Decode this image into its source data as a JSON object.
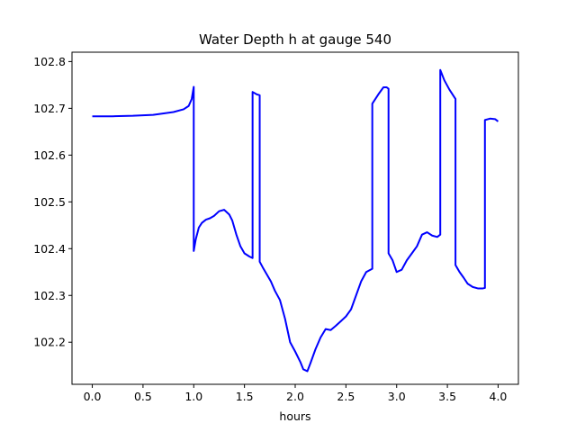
{
  "chart_data": {
    "type": "line",
    "title": "Water Depth h at gauge 540",
    "xlabel": "hours",
    "ylabel": "",
    "xlim": [
      -0.2,
      4.2
    ],
    "ylim": [
      102.11,
      102.82
    ],
    "xticks": [
      0.0,
      0.5,
      1.0,
      1.5,
      2.0,
      2.5,
      3.0,
      3.5,
      4.0
    ],
    "xtick_labels": [
      "0.0",
      "0.5",
      "1.0",
      "1.5",
      "2.0",
      "2.5",
      "3.0",
      "3.5",
      "4.0"
    ],
    "yticks": [
      102.2,
      102.3,
      102.4,
      102.5,
      102.6,
      102.7,
      102.8
    ],
    "ytick_labels": [
      "102.2",
      "102.3",
      "102.4",
      "102.5",
      "102.6",
      "102.7",
      "102.8"
    ],
    "grid": false,
    "series": [
      {
        "color": "#0000ff",
        "x": [
          0.0,
          0.2,
          0.4,
          0.6,
          0.8,
          0.9,
          0.95,
          0.98,
          1.0,
          1.0,
          1.02,
          1.05,
          1.08,
          1.12,
          1.16,
          1.2,
          1.25,
          1.3,
          1.35,
          1.38,
          1.42,
          1.46,
          1.5,
          1.55,
          1.58,
          1.58,
          1.62,
          1.65,
          1.65,
          1.68,
          1.72,
          1.76,
          1.8,
          1.85,
          1.9,
          1.95,
          2.0,
          2.05,
          2.08,
          2.12,
          2.15,
          2.2,
          2.25,
          2.3,
          2.35,
          2.4,
          2.45,
          2.5,
          2.55,
          2.6,
          2.65,
          2.7,
          2.76,
          2.76,
          2.82,
          2.87,
          2.9,
          2.92,
          2.92,
          2.96,
          3.0,
          3.05,
          3.1,
          3.15,
          3.2,
          3.25,
          3.3,
          3.35,
          3.4,
          3.43,
          3.43,
          3.47,
          3.52,
          3.58,
          3.58,
          3.62,
          3.66,
          3.7,
          3.75,
          3.8,
          3.85,
          3.87,
          3.87,
          3.92,
          3.97,
          4.0
        ],
        "y": [
          102.683,
          102.683,
          102.684,
          102.686,
          102.692,
          102.698,
          102.705,
          102.72,
          102.746,
          102.395,
          102.42,
          102.445,
          102.455,
          102.462,
          102.465,
          102.47,
          102.48,
          102.483,
          102.473,
          102.46,
          102.43,
          102.405,
          102.39,
          102.383,
          102.38,
          102.735,
          102.73,
          102.728,
          102.372,
          102.36,
          102.345,
          102.33,
          102.31,
          102.29,
          102.25,
          102.2,
          102.18,
          102.158,
          102.142,
          102.138,
          102.155,
          102.185,
          102.21,
          102.228,
          102.226,
          102.235,
          102.245,
          102.255,
          102.27,
          102.3,
          102.33,
          102.35,
          102.357,
          102.71,
          102.73,
          102.745,
          102.745,
          102.742,
          102.39,
          102.375,
          102.35,
          102.355,
          102.375,
          102.39,
          102.405,
          102.43,
          102.435,
          102.428,
          102.425,
          102.43,
          102.782,
          102.76,
          102.74,
          102.72,
          102.365,
          102.35,
          102.338,
          102.325,
          102.318,
          102.315,
          102.315,
          102.316,
          102.675,
          102.678,
          102.677,
          102.672
        ]
      }
    ]
  }
}
